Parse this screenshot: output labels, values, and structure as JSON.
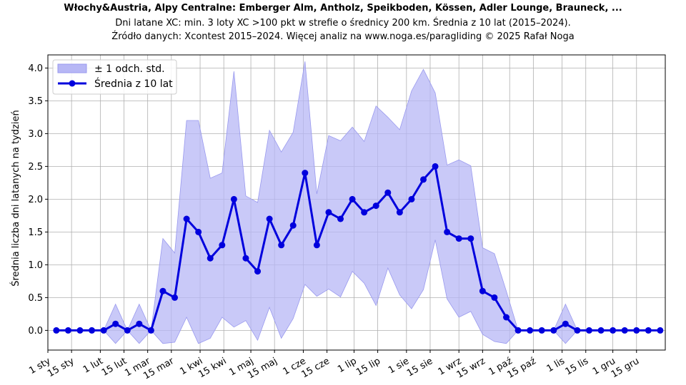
{
  "header": {
    "title": "Włochy&Austria, Alpy Centralne: Emberger Alm, Antholz, Speikboden, Kössen, Adler Lounge, Brauneck, ...",
    "subtitle_1": "Dni latane XC: min. 3 loty XC >100 pkt w strefie o średnicy 200 km. Średnia z 10 lat (2015–2024).",
    "subtitle_2": "Źródło danych: Xcontest 2015–2024. Więcej analiz na www.noga.es/paragliding © 2025 Rafał Noga"
  },
  "colors": {
    "mean_line": "#0000dd",
    "band_fill": "#b7b7f5",
    "band_edge": "#9999ee",
    "grid": "#b0b0b0"
  },
  "chart_data": {
    "type": "line",
    "title": "Włochy&Austria, Alpy Centralne: Emberger Alm, Antholz, Speikboden, Kössen, Adler Lounge, Brauneck, ...",
    "xlabel": "",
    "ylabel": "Średnia liczba dni latanych na tydzień",
    "ylim": [
      -0.3,
      4.2
    ],
    "yticks": [
      0.0,
      0.5,
      1.0,
      1.5,
      2.0,
      2.5,
      3.0,
      3.5,
      4.0
    ],
    "ytick_labels": [
      "0.0",
      "0.5",
      "1.0",
      "1.5",
      "2.0",
      "2.5",
      "3.0",
      "3.5",
      "4.0"
    ],
    "xlim": [
      1,
      366
    ],
    "xticks": [
      1,
      15,
      32,
      46,
      60,
      74,
      91,
      105,
      121,
      135,
      152,
      166,
      182,
      196,
      213,
      227,
      244,
      258,
      274,
      288,
      305,
      319,
      335,
      349
    ],
    "xtick_labels": [
      "1 sty",
      "15 sty",
      "1 lut",
      "15 lut",
      "1 mar",
      "15 mar",
      "1 kwi",
      "15 kwi",
      "1 maj",
      "15 maj",
      "1 cze",
      "15 cze",
      "1 lip",
      "15 lip",
      "1 sie",
      "15 sie",
      "1 wrz",
      "15 wrz",
      "1 paź",
      "15 paź",
      "1 lis",
      "15 lis",
      "1 gru",
      "15 gru"
    ],
    "grid": true,
    "legend": {
      "placement": "top-left",
      "entries": [
        "± 1 odch. std.",
        "Średnia z 10 lat"
      ]
    },
    "x": [
      6,
      13,
      20,
      27,
      34,
      41,
      48,
      55,
      62,
      69,
      76,
      83,
      90,
      97,
      104,
      111,
      118,
      125,
      132,
      139,
      146,
      153,
      160,
      167,
      174,
      181,
      188,
      195,
      202,
      209,
      216,
      223,
      230,
      237,
      244,
      251,
      258,
      265,
      272,
      279,
      286,
      293,
      300,
      307,
      314,
      321,
      328,
      335,
      342,
      349,
      356,
      363
    ],
    "series": [
      {
        "name": "Średnia z 10 lat",
        "values": [
          0.0,
          0.0,
          0.0,
          0.0,
          0.0,
          0.1,
          0.0,
          0.1,
          0.0,
          0.6,
          0.5,
          1.7,
          1.5,
          1.1,
          1.3,
          2.0,
          1.1,
          0.9,
          1.7,
          1.3,
          1.6,
          2.4,
          1.3,
          1.8,
          1.7,
          2.0,
          1.8,
          1.9,
          2.1,
          1.8,
          2.0,
          2.3,
          2.5,
          1.5,
          1.4,
          1.4,
          0.6,
          0.5,
          0.2,
          0.0,
          0.0,
          0.0,
          0.0,
          0.1,
          0.0,
          0.0,
          0.0,
          0.0,
          0.0,
          0.0,
          0.0,
          0.0
        ]
      },
      {
        "name": "± 1 odch. std.",
        "upper": [
          0.0,
          0.0,
          0.0,
          0.0,
          0.0,
          0.4,
          0.0,
          0.4,
          0.0,
          1.4,
          1.18,
          3.2,
          3.2,
          2.32,
          2.4,
          3.95,
          2.05,
          1.95,
          3.05,
          2.72,
          3.02,
          4.1,
          2.08,
          2.97,
          2.89,
          3.1,
          2.88,
          3.42,
          3.25,
          3.06,
          3.65,
          3.98,
          3.62,
          2.52,
          2.6,
          2.51,
          1.26,
          1.17,
          0.6,
          0.0,
          0.0,
          0.0,
          0.0,
          0.4,
          0.0,
          0.0,
          0.0,
          0.0,
          0.0,
          0.0,
          0.0,
          0.0
        ],
        "lower": [
          0.0,
          0.0,
          0.0,
          0.0,
          0.0,
          -0.2,
          0.0,
          -0.2,
          0.0,
          -0.2,
          -0.18,
          0.2,
          -0.2,
          -0.12,
          0.2,
          0.05,
          0.15,
          -0.15,
          0.35,
          -0.12,
          0.18,
          0.7,
          0.52,
          0.63,
          0.51,
          0.9,
          0.72,
          0.38,
          0.95,
          0.54,
          0.33,
          0.62,
          1.38,
          0.48,
          0.2,
          0.29,
          -0.06,
          -0.17,
          -0.2,
          0.0,
          0.0,
          0.0,
          0.0,
          -0.2,
          0.0,
          0.0,
          0.0,
          0.0,
          0.0,
          0.0,
          0.0,
          0.0
        ]
      }
    ]
  }
}
